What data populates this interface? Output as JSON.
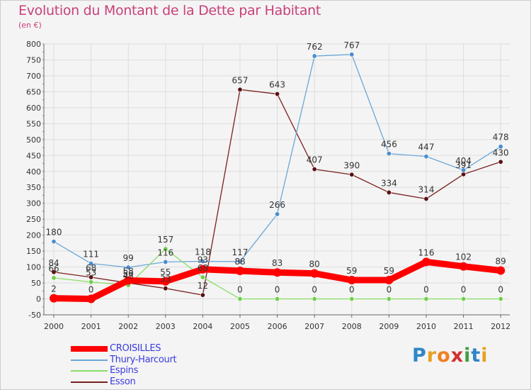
{
  "header": {
    "title": "Evolution du Montant de la Dette par Habitant",
    "subtitle": "(en €)"
  },
  "logo": {
    "letters": [
      "P",
      "r",
      "o",
      "x",
      "i",
      "t",
      "i"
    ],
    "colors": [
      "#2f86c8",
      "#e8a020",
      "#f08020",
      "#d03030",
      "#3fa03f",
      "#2f86c8",
      "#e8a020"
    ]
  },
  "chart_data": {
    "type": "line",
    "title": "Evolution du Montant de la Dette par Habitant",
    "subtitle": "(en €)",
    "x": [
      "2000",
      "2001",
      "2002",
      "2003",
      "2004",
      "2005",
      "2006",
      "2007",
      "2008",
      "2009",
      "2010",
      "2011",
      "2012"
    ],
    "ylim": [
      -50,
      800
    ],
    "yticks": [
      -50,
      0,
      50,
      100,
      150,
      200,
      250,
      300,
      350,
      400,
      450,
      500,
      550,
      600,
      650,
      700,
      750,
      800
    ],
    "grid": true,
    "legend_position": "bottom-left",
    "series": [
      {
        "name": "CROISILLES",
        "color": "#ff0000",
        "values": [
          2,
          0,
          58,
          55,
          93,
          88,
          83,
          80,
          59,
          59,
          116,
          102,
          89
        ],
        "labels": [
          "2",
          "0",
          "58",
          "55",
          "93",
          "88",
          "83",
          "80",
          "59",
          "59",
          "116",
          "102",
          "89"
        ]
      },
      {
        "name": "Thury-Harcourt",
        "color": "#6aa7d8",
        "values": [
          180,
          111,
          99,
          116,
          118,
          117,
          266,
          762,
          767,
          456,
          447,
          404,
          478
        ],
        "labels": [
          "180",
          "111",
          "99",
          "116",
          "118",
          "117",
          "266",
          "762",
          "767",
          "456",
          "447",
          "404",
          "478"
        ]
      },
      {
        "name": "Espins",
        "color": "#88dd66",
        "values": [
          66,
          53,
          43,
          157,
          68,
          0,
          0,
          0,
          0,
          0,
          0,
          0,
          0
        ],
        "labels": [
          "66",
          "53",
          "43",
          "157",
          "68",
          "0",
          "0",
          "0",
          "0",
          "0",
          "0",
          "0",
          "0"
        ]
      },
      {
        "name": "Esson",
        "color": "#7a2020",
        "values": [
          84,
          68,
          50,
          33,
          12,
          657,
          643,
          407,
          390,
          334,
          314,
          391,
          430
        ],
        "labels": [
          "84",
          "68",
          "50",
          "33",
          "12",
          "657",
          "643",
          "407",
          "390",
          "334",
          "314",
          "391",
          "430"
        ]
      }
    ]
  }
}
